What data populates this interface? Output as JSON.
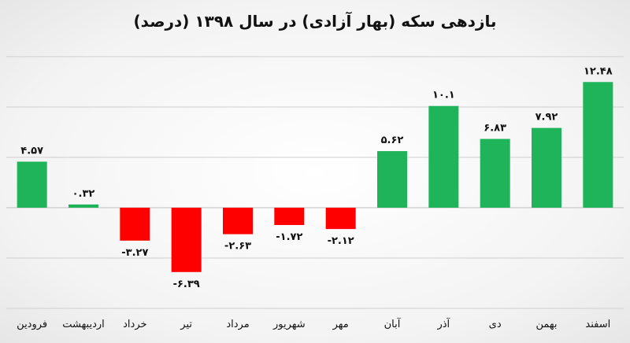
{
  "chart_data": {
    "type": "bar",
    "title": "بازدهی سکه (بهار آزادی) در سال ۱۳۹۸ (درصد)",
    "xlabel": "",
    "ylabel": "",
    "categories": [
      "فرودین",
      "اردیبهشت",
      "خرداد",
      "تیر",
      "مرداد",
      "شهریور",
      "مهر",
      "آبان",
      "آذر",
      "دی",
      "بهمن",
      "اسفند"
    ],
    "values": [
      4.57,
      0.32,
      -3.27,
      -6.39,
      -2.63,
      -1.72,
      -2.12,
      5.62,
      10.1,
      6.83,
      7.92,
      12.48
    ],
    "value_labels": [
      "۴.۵۷",
      "۰.۳۲",
      "-۳.۲۷",
      "-۶.۳۹",
      "-۲.۶۳",
      "-۱.۷۲",
      "-۲.۱۲",
      "۵.۶۲",
      "۱۰.۱",
      "۶.۸۳",
      "۷.۹۲",
      "۱۲.۴۸"
    ],
    "ylim": [
      -10,
      15
    ],
    "grid": true,
    "legend": "none",
    "colors": {
      "positive": "#1fb45a",
      "negative": "#ff0000"
    }
  }
}
